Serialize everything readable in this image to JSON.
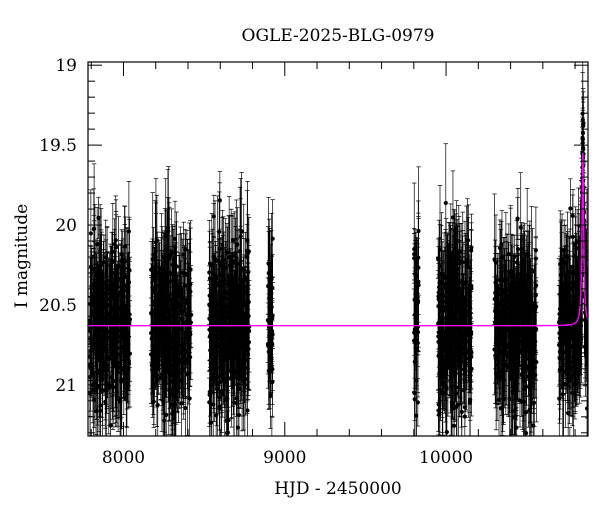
{
  "chart_data": {
    "type": "scatter",
    "title": "OGLE-2025-BLG-0979",
    "xlabel": "HJD - 2450000",
    "ylabel": "I magnitude",
    "xlim": [
      7780,
      10880
    ],
    "ylim": [
      21.32,
      18.98
    ],
    "y_inverted": true,
    "x_ticks": [
      8000,
      9000,
      10000
    ],
    "y_ticks": [
      19,
      19.5,
      20,
      20.5,
      21
    ],
    "x_tick_labels": [
      "8000",
      "9000",
      "10000"
    ],
    "y_tick_labels": [
      "19",
      "19.5",
      "20",
      "20.5",
      "21"
    ],
    "grid": false,
    "legend": "none",
    "baseline_magnitude": 20.63,
    "model_peak": {
      "x": 10848,
      "y": 19.52
    },
    "seasons": [
      {
        "start": 7790,
        "end": 8040,
        "count": 320
      },
      {
        "start": 8170,
        "end": 8420,
        "count": 330
      },
      {
        "start": 8530,
        "end": 8780,
        "count": 330
      },
      {
        "start": 8895,
        "end": 8925,
        "count": 45
      },
      {
        "start": 9800,
        "end": 9830,
        "count": 40
      },
      {
        "start": 9950,
        "end": 10160,
        "count": 300
      },
      {
        "start": 10300,
        "end": 10560,
        "count": 320
      },
      {
        "start": 10700,
        "end": 10880,
        "count": 260
      }
    ],
    "series": [
      {
        "kind": "points",
        "color": "#000000"
      },
      {
        "kind": "model",
        "color": "#ff00ff"
      }
    ]
  }
}
